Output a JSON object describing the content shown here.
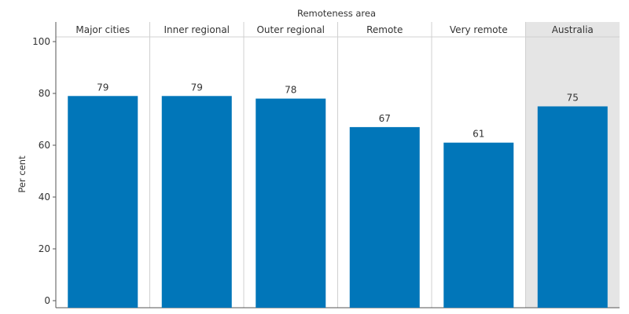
{
  "chart_data": {
    "type": "bar",
    "title": "Remoteness area",
    "xlabel": "",
    "ylabel": "Per cent",
    "categories": [
      "Major cities",
      "Inner regional",
      "Outer regional",
      "Remote",
      "Very remote",
      "Australia"
    ],
    "values": [
      79,
      79,
      78,
      67,
      61,
      75
    ],
    "data_labels": [
      "79",
      "79",
      "78",
      "67",
      "61",
      "75"
    ],
    "highlighted_category": "Australia",
    "ylim": [
      0,
      100
    ],
    "yticks": [
      0,
      20,
      40,
      60,
      80,
      100
    ],
    "grid": false,
    "colors": {
      "bar": "#0176B9",
      "highlight_panel": "#E5E5E5",
      "divider": "#D0D0D0",
      "axis": "#555555",
      "text": "#333333"
    }
  }
}
